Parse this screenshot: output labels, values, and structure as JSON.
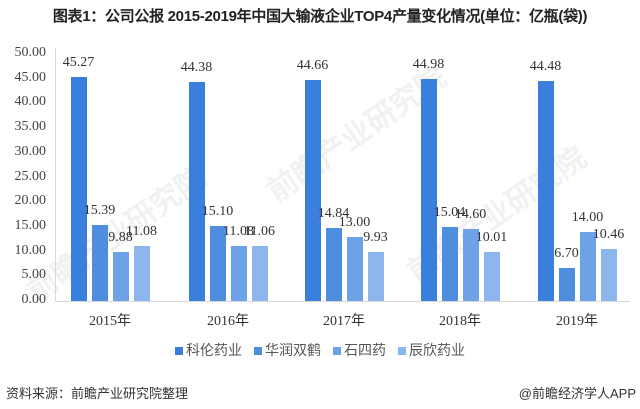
{
  "title": "图表1：公司公报 2015-2019年中国大输液企业TOP4产量变化情况(单位：亿瓶(袋))",
  "footer": {
    "source": "资料来源：前瞻产业研究院整理",
    "credit": "@前瞻经济学人APP"
  },
  "watermark": "前瞻产业研究院",
  "chart_data": {
    "type": "bar",
    "title": "图表1：公司公报 2015-2019年中国大输液企业TOP4产量变化情况(单位：亿瓶(袋))",
    "xlabel": "",
    "ylabel": "",
    "ylim": [
      0,
      50
    ],
    "yticks": [
      "0.00",
      "5.00",
      "10.00",
      "15.00",
      "20.00",
      "25.00",
      "30.00",
      "35.00",
      "40.00",
      "45.00",
      "50.00"
    ],
    "grid": false,
    "legend_position": "bottom",
    "categories": [
      "2015年",
      "2016年",
      "2017年",
      "2018年",
      "2019年"
    ],
    "series": [
      {
        "name": "科伦药业",
        "color": "#3a7fdc",
        "values": [
          45.27,
          44.38,
          44.66,
          44.98,
          44.48
        ],
        "labels": [
          "45.27",
          "44.38",
          "44.66",
          "44.98",
          "44.48"
        ]
      },
      {
        "name": "华润双鹤",
        "color": "#4f8ddf",
        "values": [
          15.39,
          15.1,
          14.84,
          15.04,
          6.7
        ],
        "labels": [
          "15.39",
          "15.10",
          "14.84",
          "15.04",
          "6.70"
        ]
      },
      {
        "name": "石四药",
        "color": "#6ea2e6",
        "values": [
          9.88,
          11.08,
          13.0,
          14.6,
          14.0
        ],
        "labels": [
          "9.88",
          "11.08",
          "13.00",
          "14.60",
          "14.00"
        ]
      },
      {
        "name": "辰欣药业",
        "color": "#8db6ec",
        "values": [
          11.08,
          11.06,
          9.93,
          10.01,
          10.46
        ],
        "labels": [
          "11.08",
          "11.06",
          "9.93",
          "10.01",
          "10.46"
        ]
      }
    ]
  }
}
